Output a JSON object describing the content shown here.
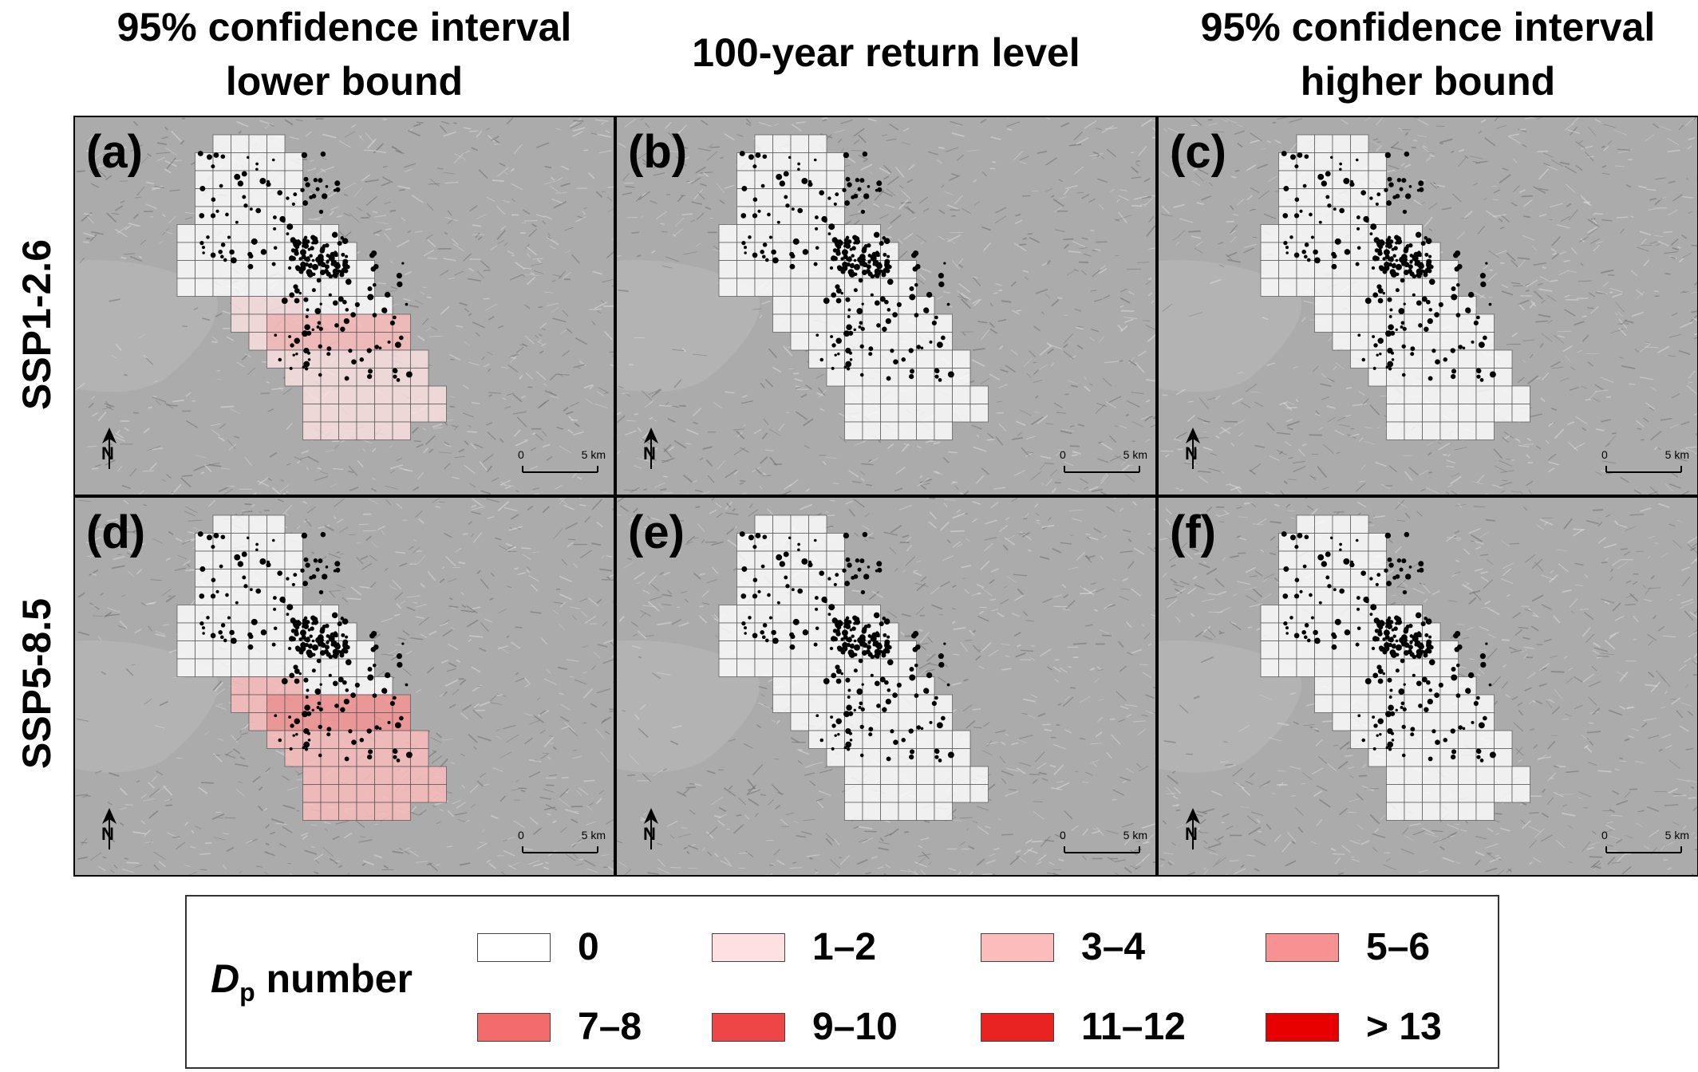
{
  "columns": [
    {
      "title": "95% confidence interval\nlower bound"
    },
    {
      "title": "100-year return level"
    },
    {
      "title": "95% confidence interval\nhigher bound"
    }
  ],
  "rows": [
    {
      "title": "SSP1-2.6"
    },
    {
      "title": "SSP5-8.5"
    }
  ],
  "panels": [
    {
      "label": "(a)",
      "scenario": "SSP1-2.6",
      "estimate": "lower",
      "class_by_zone": {
        "west": "1–2",
        "south": "1–2",
        "core": "3–4"
      }
    },
    {
      "label": "(b)",
      "scenario": "SSP1-2.6",
      "estimate": "return",
      "class_by_zone": {}
    },
    {
      "label": "(c)",
      "scenario": "SSP1-2.6",
      "estimate": "higher",
      "class_by_zone": {}
    },
    {
      "label": "(d)",
      "scenario": "SSP5-8.5",
      "estimate": "lower",
      "class_by_zone": {
        "west": "3–4",
        "south": "3–4",
        "core": "5–6"
      }
    },
    {
      "label": "(e)",
      "scenario": "SSP5-8.5",
      "estimate": "return",
      "class_by_zone": {}
    },
    {
      "label": "(f)",
      "scenario": "SSP5-8.5",
      "estimate": "higher",
      "class_by_zone": {}
    }
  ],
  "map_labels": {
    "north": "N",
    "scale_start": "0",
    "scale_end": "5 km"
  },
  "legend": {
    "title_symbol": "D",
    "title_sub": "p",
    "title_rest": " number",
    "items": [
      {
        "label": "0",
        "color": "#ffffff"
      },
      {
        "label": "1–2",
        "color": "#fde0e0"
      },
      {
        "label": "3–4",
        "color": "#fbbcbc"
      },
      {
        "label": "5–6",
        "color": "#f89292"
      },
      {
        "label": "7–8",
        "color": "#f36c6c"
      },
      {
        "label": "9–10",
        "color": "#ee4646"
      },
      {
        "label": "11–12",
        "color": "#e92222"
      },
      {
        "label": "> 13",
        "color": "#e80000"
      }
    ]
  }
}
